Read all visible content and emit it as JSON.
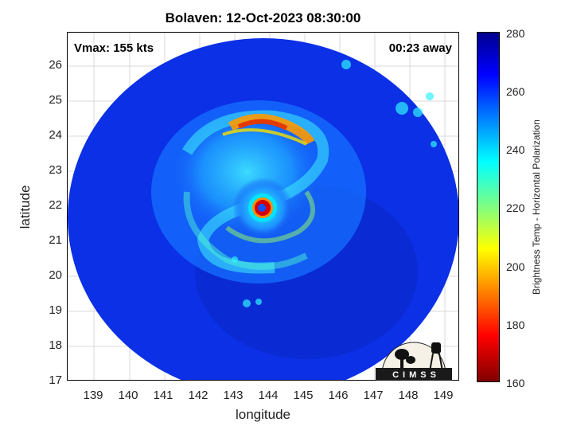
{
  "header": {
    "title": "Bolaven: 12-Oct-2023 08:30:00",
    "vmax": "Vmax: 155 kts",
    "time_away": "00:23 away"
  },
  "axes": {
    "xlabel": "longitude",
    "ylabel": "latitude",
    "xticks": [
      "139",
      "140",
      "141",
      "142",
      "143",
      "144",
      "145",
      "146",
      "147",
      "148",
      "149"
    ],
    "yticks": [
      "26",
      "25",
      "24",
      "23",
      "22",
      "21",
      "20",
      "19",
      "18",
      "17"
    ],
    "xlim": [
      138.3,
      149.1
    ],
    "ylim": [
      16.9,
      26.9
    ]
  },
  "colorbar": {
    "label": "Brightness Temp - Horizontal Polarization",
    "ticks": [
      "280",
      "260",
      "240",
      "220",
      "200",
      "180",
      "160"
    ],
    "range": [
      160,
      280
    ],
    "colormap": "jet"
  },
  "logo": {
    "text": "CIMSS"
  },
  "colors": {
    "background_cold": "#0a2ee0",
    "eye_center": "#1450ff",
    "eyewall": "#c80000"
  }
}
